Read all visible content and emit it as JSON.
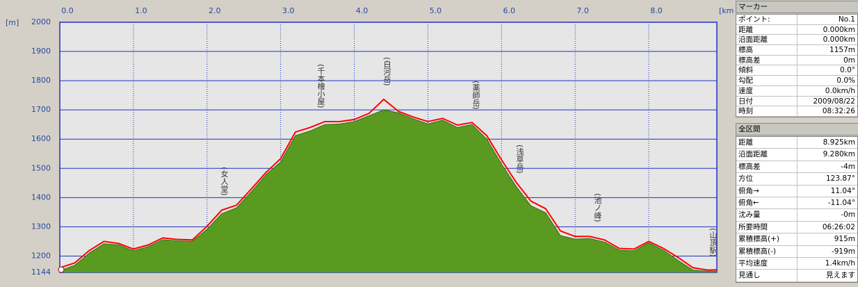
{
  "chart_data": {
    "type": "elevation-profile",
    "x_unit": "[km]",
    "y_unit": "[m]",
    "x": [
      0,
      0.2,
      0.4,
      0.6,
      0.8,
      1.0,
      1.2,
      1.4,
      1.6,
      1.8,
      2.0,
      2.2,
      2.4,
      2.6,
      2.8,
      3.0,
      3.2,
      3.4,
      3.6,
      3.8,
      4.0,
      4.2,
      4.4,
      4.6,
      4.8,
      5.0,
      5.2,
      5.4,
      5.6,
      5.8,
      6.0,
      6.2,
      6.4,
      6.6,
      6.8,
      7.0,
      7.2,
      7.4,
      7.6,
      7.8,
      8.0,
      8.2,
      8.4,
      8.6,
      8.8,
      8.925
    ],
    "series": [
      {
        "color": "#5a9a20",
        "values": [
          1150,
          1168,
          1210,
          1242,
          1238,
          1218,
          1232,
          1256,
          1252,
          1250,
          1292,
          1345,
          1365,
          1420,
          1478,
          1522,
          1612,
          1628,
          1650,
          1652,
          1660,
          1680,
          1700,
          1690,
          1670,
          1652,
          1665,
          1640,
          1650,
          1600,
          1515,
          1438,
          1372,
          1348,
          1270,
          1258,
          1260,
          1248,
          1220,
          1218,
          1245,
          1220,
          1185,
          1152,
          1148,
          1148
        ]
      },
      {
        "color": "#ff0000",
        "values": [
          1160,
          1176,
          1219,
          1250,
          1243,
          1224,
          1238,
          1262,
          1257,
          1255,
          1302,
          1357,
          1374,
          1429,
          1486,
          1533,
          1624,
          1640,
          1660,
          1660,
          1667,
          1688,
          1736,
          1695,
          1676,
          1660,
          1671,
          1648,
          1657,
          1612,
          1529,
          1452,
          1388,
          1362,
          1286,
          1267,
          1267,
          1255,
          1226,
          1224,
          1250,
          1226,
          1195,
          1160,
          1152,
          1153
        ]
      }
    ],
    "annotations": [
      "(女人堂)",
      "(千本檜小屋)",
      "(白河岳)",
      "(薬師岳)",
      "(浅草岳)",
      "(池ノ峰)",
      "(山頂駅)"
    ],
    "xlim": [
      0,
      8.925
    ],
    "xticks": [
      {
        "value": 0,
        "label": "0.0"
      },
      {
        "value": 1,
        "label": "1.0"
      },
      {
        "value": 2,
        "label": "2.0"
      },
      {
        "value": 3,
        "label": "3.0"
      },
      {
        "value": 4,
        "label": "4.0"
      },
      {
        "value": 5,
        "label": "5.0"
      },
      {
        "value": 6,
        "label": "6.0"
      },
      {
        "value": 7,
        "label": "7.0"
      },
      {
        "value": 8,
        "label": "8.0"
      }
    ],
    "ylim": [
      1144,
      2000
    ],
    "yticks": [
      1144,
      1200,
      1300,
      1400,
      1500,
      1600,
      1700,
      1800,
      1900,
      2000
    ],
    "grid": true
  },
  "panel": {
    "marker": {
      "title": "マーカー",
      "rows": [
        [
          "ポイント:",
          "No.1"
        ],
        [
          "距離",
          "0.000km"
        ],
        [
          "沿面距離",
          "0.000km"
        ],
        [
          "標高",
          "1157m"
        ],
        [
          "標高差",
          "0m"
        ],
        [
          "傾斜",
          "0.0°"
        ],
        [
          "勾配",
          "0.0%"
        ],
        [
          "速度",
          "0.0km/h"
        ],
        [
          "日付",
          "2009/08/22"
        ],
        [
          "時刻",
          "08:32:26"
        ]
      ]
    },
    "total": {
      "title": "全区間",
      "rows": [
        [
          "距離",
          "8.925km"
        ],
        [
          "沿面距離",
          "9.280km"
        ],
        [
          "標高差",
          "-4m"
        ],
        [
          "方位",
          "123.87°"
        ],
        [
          "俯角→",
          "11.04°"
        ],
        [
          "俯角←",
          "-11.04°"
        ],
        [
          "沈み量",
          "-0m"
        ],
        [
          "所要時間",
          "06:26:02"
        ],
        [
          "累積標高(+)",
          "915m"
        ],
        [
          "累積標高(-)",
          "-919m"
        ],
        [
          "平均速度",
          "1.4km/h"
        ],
        [
          "見通し",
          "見えます"
        ]
      ]
    }
  }
}
